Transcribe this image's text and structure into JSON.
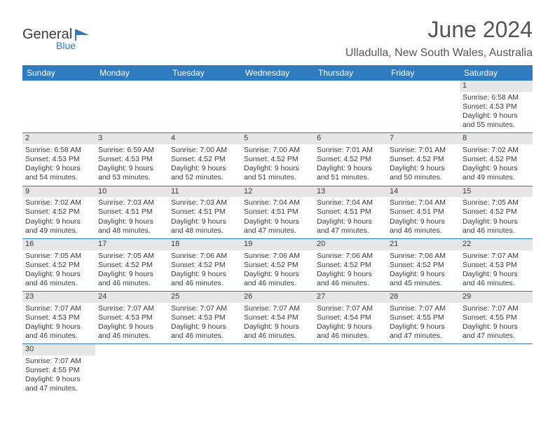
{
  "brand": {
    "name": "General",
    "sub": "Blue"
  },
  "title": "June 2024",
  "location": "Ulladulla, New South Wales, Australia",
  "colors": {
    "header_bg": "#2e7bc0",
    "header_text": "#ffffff",
    "daynum_bg": "#e6e6e6",
    "text": "#3b3b3b",
    "title_text": "#555555",
    "border": "#2e7bc0"
  },
  "weekdays": [
    "Sunday",
    "Monday",
    "Tuesday",
    "Wednesday",
    "Thursday",
    "Friday",
    "Saturday"
  ],
  "weeks": [
    [
      {
        "empty": true
      },
      {
        "empty": true
      },
      {
        "empty": true
      },
      {
        "empty": true
      },
      {
        "empty": true
      },
      {
        "empty": true
      },
      {
        "day": "1",
        "sunrise": "Sunrise: 6:58 AM",
        "sunset": "Sunset: 4:53 PM",
        "daylight1": "Daylight: 9 hours",
        "daylight2": "and 55 minutes."
      }
    ],
    [
      {
        "day": "2",
        "sunrise": "Sunrise: 6:58 AM",
        "sunset": "Sunset: 4:53 PM",
        "daylight1": "Daylight: 9 hours",
        "daylight2": "and 54 minutes."
      },
      {
        "day": "3",
        "sunrise": "Sunrise: 6:59 AM",
        "sunset": "Sunset: 4:53 PM",
        "daylight1": "Daylight: 9 hours",
        "daylight2": "and 53 minutes."
      },
      {
        "day": "4",
        "sunrise": "Sunrise: 7:00 AM",
        "sunset": "Sunset: 4:52 PM",
        "daylight1": "Daylight: 9 hours",
        "daylight2": "and 52 minutes."
      },
      {
        "day": "5",
        "sunrise": "Sunrise: 7:00 AM",
        "sunset": "Sunset: 4:52 PM",
        "daylight1": "Daylight: 9 hours",
        "daylight2": "and 51 minutes."
      },
      {
        "day": "6",
        "sunrise": "Sunrise: 7:01 AM",
        "sunset": "Sunset: 4:52 PM",
        "daylight1": "Daylight: 9 hours",
        "daylight2": "and 51 minutes."
      },
      {
        "day": "7",
        "sunrise": "Sunrise: 7:01 AM",
        "sunset": "Sunset: 4:52 PM",
        "daylight1": "Daylight: 9 hours",
        "daylight2": "and 50 minutes."
      },
      {
        "day": "8",
        "sunrise": "Sunrise: 7:02 AM",
        "sunset": "Sunset: 4:52 PM",
        "daylight1": "Daylight: 9 hours",
        "daylight2": "and 49 minutes."
      }
    ],
    [
      {
        "day": "9",
        "sunrise": "Sunrise: 7:02 AM",
        "sunset": "Sunset: 4:52 PM",
        "daylight1": "Daylight: 9 hours",
        "daylight2": "and 49 minutes."
      },
      {
        "day": "10",
        "sunrise": "Sunrise: 7:03 AM",
        "sunset": "Sunset: 4:51 PM",
        "daylight1": "Daylight: 9 hours",
        "daylight2": "and 48 minutes."
      },
      {
        "day": "11",
        "sunrise": "Sunrise: 7:03 AM",
        "sunset": "Sunset: 4:51 PM",
        "daylight1": "Daylight: 9 hours",
        "daylight2": "and 48 minutes."
      },
      {
        "day": "12",
        "sunrise": "Sunrise: 7:04 AM",
        "sunset": "Sunset: 4:51 PM",
        "daylight1": "Daylight: 9 hours",
        "daylight2": "and 47 minutes."
      },
      {
        "day": "13",
        "sunrise": "Sunrise: 7:04 AM",
        "sunset": "Sunset: 4:51 PM",
        "daylight1": "Daylight: 9 hours",
        "daylight2": "and 47 minutes."
      },
      {
        "day": "14",
        "sunrise": "Sunrise: 7:04 AM",
        "sunset": "Sunset: 4:51 PM",
        "daylight1": "Daylight: 9 hours",
        "daylight2": "and 46 minutes."
      },
      {
        "day": "15",
        "sunrise": "Sunrise: 7:05 AM",
        "sunset": "Sunset: 4:52 PM",
        "daylight1": "Daylight: 9 hours",
        "daylight2": "and 46 minutes."
      }
    ],
    [
      {
        "day": "16",
        "sunrise": "Sunrise: 7:05 AM",
        "sunset": "Sunset: 4:52 PM",
        "daylight1": "Daylight: 9 hours",
        "daylight2": "and 46 minutes."
      },
      {
        "day": "17",
        "sunrise": "Sunrise: 7:05 AM",
        "sunset": "Sunset: 4:52 PM",
        "daylight1": "Daylight: 9 hours",
        "daylight2": "and 46 minutes."
      },
      {
        "day": "18",
        "sunrise": "Sunrise: 7:06 AM",
        "sunset": "Sunset: 4:52 PM",
        "daylight1": "Daylight: 9 hours",
        "daylight2": "and 46 minutes."
      },
      {
        "day": "19",
        "sunrise": "Sunrise: 7:06 AM",
        "sunset": "Sunset: 4:52 PM",
        "daylight1": "Daylight: 9 hours",
        "daylight2": "and 46 minutes."
      },
      {
        "day": "20",
        "sunrise": "Sunrise: 7:06 AM",
        "sunset": "Sunset: 4:52 PM",
        "daylight1": "Daylight: 9 hours",
        "daylight2": "and 46 minutes."
      },
      {
        "day": "21",
        "sunrise": "Sunrise: 7:06 AM",
        "sunset": "Sunset: 4:52 PM",
        "daylight1": "Daylight: 9 hours",
        "daylight2": "and 45 minutes."
      },
      {
        "day": "22",
        "sunrise": "Sunrise: 7:07 AM",
        "sunset": "Sunset: 4:53 PM",
        "daylight1": "Daylight: 9 hours",
        "daylight2": "and 46 minutes."
      }
    ],
    [
      {
        "day": "23",
        "sunrise": "Sunrise: 7:07 AM",
        "sunset": "Sunset: 4:53 PM",
        "daylight1": "Daylight: 9 hours",
        "daylight2": "and 46 minutes."
      },
      {
        "day": "24",
        "sunrise": "Sunrise: 7:07 AM",
        "sunset": "Sunset: 4:53 PM",
        "daylight1": "Daylight: 9 hours",
        "daylight2": "and 46 minutes."
      },
      {
        "day": "25",
        "sunrise": "Sunrise: 7:07 AM",
        "sunset": "Sunset: 4:53 PM",
        "daylight1": "Daylight: 9 hours",
        "daylight2": "and 46 minutes."
      },
      {
        "day": "26",
        "sunrise": "Sunrise: 7:07 AM",
        "sunset": "Sunset: 4:54 PM",
        "daylight1": "Daylight: 9 hours",
        "daylight2": "and 46 minutes."
      },
      {
        "day": "27",
        "sunrise": "Sunrise: 7:07 AM",
        "sunset": "Sunset: 4:54 PM",
        "daylight1": "Daylight: 9 hours",
        "daylight2": "and 46 minutes."
      },
      {
        "day": "28",
        "sunrise": "Sunrise: 7:07 AM",
        "sunset": "Sunset: 4:55 PM",
        "daylight1": "Daylight: 9 hours",
        "daylight2": "and 47 minutes."
      },
      {
        "day": "29",
        "sunrise": "Sunrise: 7:07 AM",
        "sunset": "Sunset: 4:55 PM",
        "daylight1": "Daylight: 9 hours",
        "daylight2": "and 47 minutes."
      }
    ],
    [
      {
        "day": "30",
        "sunrise": "Sunrise: 7:07 AM",
        "sunset": "Sunset: 4:55 PM",
        "daylight1": "Daylight: 9 hours",
        "daylight2": "and 47 minutes."
      },
      {
        "empty": true
      },
      {
        "empty": true
      },
      {
        "empty": true
      },
      {
        "empty": true
      },
      {
        "empty": true
      },
      {
        "empty": true
      }
    ]
  ]
}
